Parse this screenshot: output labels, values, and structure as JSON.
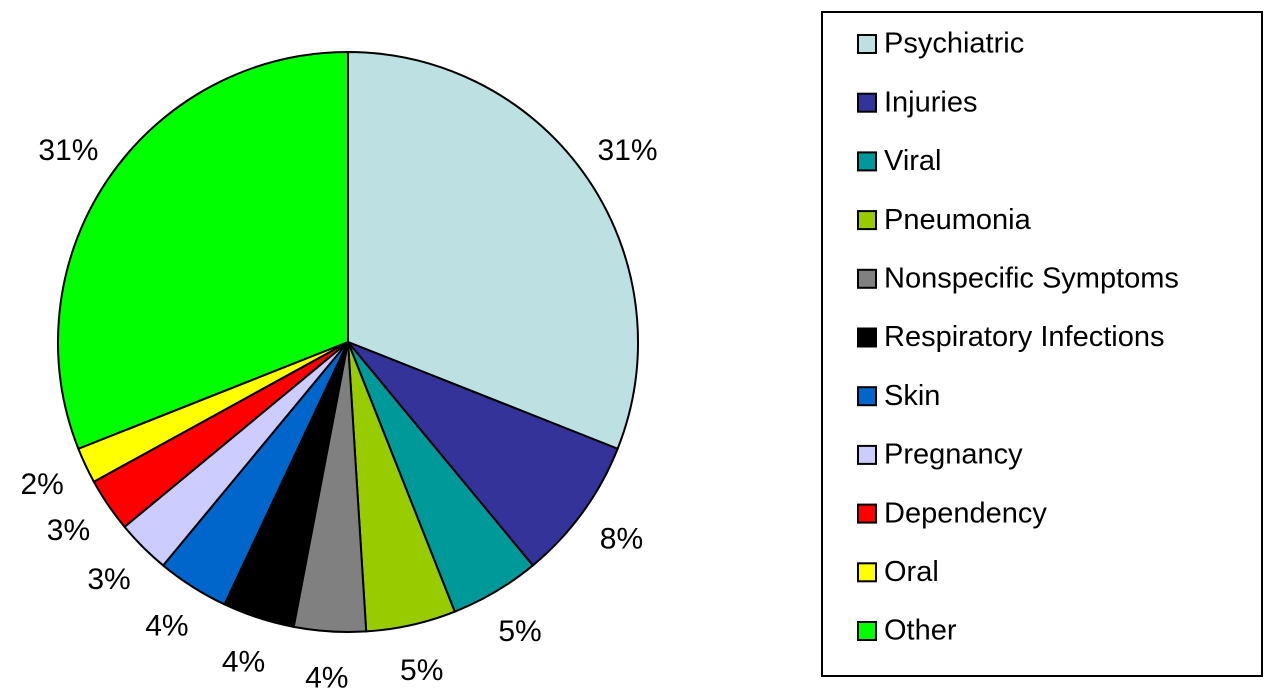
{
  "chart_data": {
    "type": "pie",
    "categories": [
      "Psychiatric",
      "Injuries",
      "Viral",
      "Pneumonia",
      "Nonspecific Symptoms",
      "Respiratory Infections",
      "Skin",
      "Pregnancy",
      "Dependency",
      "Oral",
      "Other"
    ],
    "values": [
      31,
      8,
      5,
      5,
      4,
      4,
      4,
      3,
      3,
      2,
      31
    ],
    "value_labels": [
      "31%",
      "8%",
      "5%",
      "5%",
      "4%",
      "4%",
      "4%",
      "3%",
      "3%",
      "2%",
      "31%"
    ],
    "colors": [
      "#bde0e3",
      "#333399",
      "#009999",
      "#99cc00",
      "#808080",
      "#000000",
      "#0066cc",
      "#ccccff",
      "#ff0000",
      "#ffff00",
      "#00ff00"
    ],
    "legend": "right"
  }
}
